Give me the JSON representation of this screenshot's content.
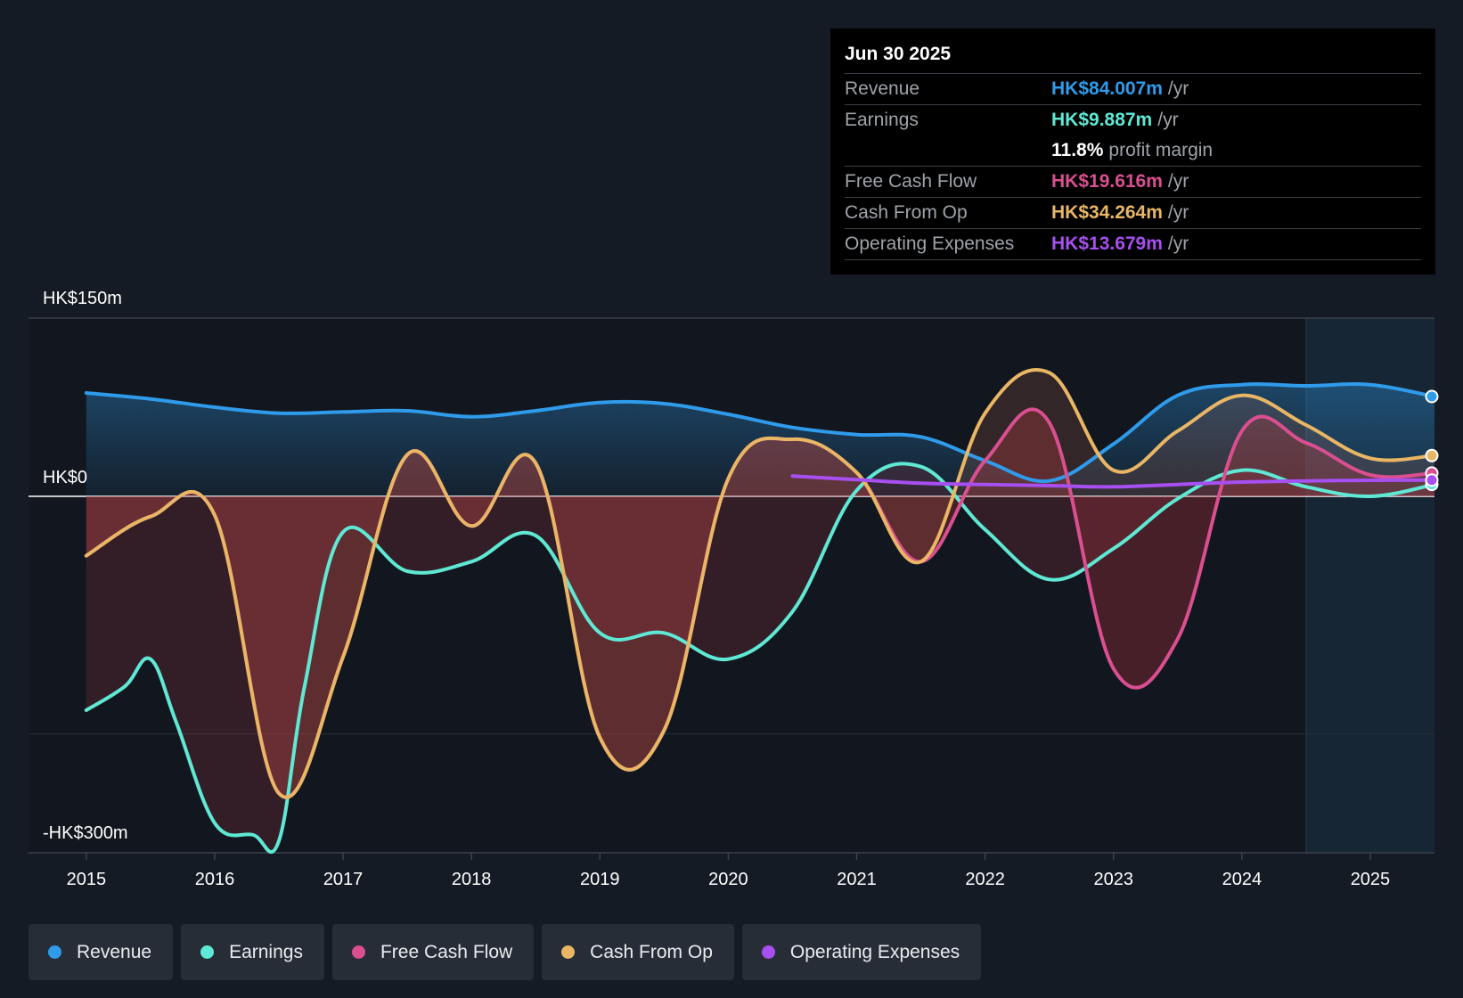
{
  "tooltip": {
    "date": "Jun 30 2025",
    "rows": [
      {
        "label": "Revenue",
        "value": "HK$84.007m",
        "unit": "/yr",
        "color": "#2f9bea"
      },
      {
        "label": "Earnings",
        "value": "HK$9.887m",
        "unit": "/yr",
        "color": "#5fe8d4"
      },
      {
        "label": "",
        "value": "11.8%",
        "unit": "profit margin",
        "color": "#ffffff"
      },
      {
        "label": "Free Cash Flow",
        "value": "HK$19.616m",
        "unit": "/yr",
        "color": "#d94f8f"
      },
      {
        "label": "Cash From Op",
        "value": "HK$34.264m",
        "unit": "/yr",
        "color": "#e9b665"
      },
      {
        "label": "Operating Expenses",
        "value": "HK$13.679m",
        "unit": "/yr",
        "color": "#a74ff0"
      }
    ]
  },
  "legend": [
    {
      "label": "Revenue",
      "color": "#2f9bea"
    },
    {
      "label": "Earnings",
      "color": "#5fe8d4"
    },
    {
      "label": "Free Cash Flow",
      "color": "#d94f8f"
    },
    {
      "label": "Cash From Op",
      "color": "#e9b665"
    },
    {
      "label": "Operating Expenses",
      "color": "#a74ff0"
    }
  ],
  "chart_data": {
    "type": "area",
    "ylim": [
      -300,
      150
    ],
    "ytick_labels": [
      {
        "value": 150,
        "label": "HK$150m"
      },
      {
        "value": 0,
        "label": "HK$0"
      },
      {
        "value": -300,
        "label": "-HK$300m"
      }
    ],
    "xlim": [
      2014.55,
      2025.5
    ],
    "xtick_labels": [
      "2015",
      "2016",
      "2017",
      "2018",
      "2019",
      "2020",
      "2021",
      "2022",
      "2023",
      "2024",
      "2025"
    ],
    "xtick_values": [
      2015,
      2016,
      2017,
      2018,
      2019,
      2020,
      2021,
      2022,
      2023,
      2024,
      2025
    ],
    "forecast_start": 2024.5,
    "series": [
      {
        "name": "Revenue",
        "color": "#2f9bea",
        "points": [
          [
            2015,
            87
          ],
          [
            2015.5,
            82
          ],
          [
            2016,
            75
          ],
          [
            2016.5,
            70
          ],
          [
            2017,
            71
          ],
          [
            2017.5,
            72
          ],
          [
            2018,
            67
          ],
          [
            2018.5,
            72
          ],
          [
            2019,
            79
          ],
          [
            2019.5,
            78
          ],
          [
            2020,
            69
          ],
          [
            2020.5,
            58
          ],
          [
            2021,
            52
          ],
          [
            2021.5,
            50
          ],
          [
            2022,
            30
          ],
          [
            2022.5,
            13
          ],
          [
            2023,
            44
          ],
          [
            2023.5,
            85
          ],
          [
            2024,
            94
          ],
          [
            2024.5,
            93
          ],
          [
            2025,
            94
          ],
          [
            2025.5,
            84
          ]
        ]
      },
      {
        "name": "Earnings",
        "color": "#5fe8d4",
        "points": [
          [
            2015,
            -180
          ],
          [
            2015.3,
            -160
          ],
          [
            2015.5,
            -137
          ],
          [
            2015.7,
            -190
          ],
          [
            2016,
            -275
          ],
          [
            2016.3,
            -285
          ],
          [
            2016.5,
            -290
          ],
          [
            2016.7,
            -160
          ],
          [
            2017,
            -30
          ],
          [
            2017.5,
            -63
          ],
          [
            2018,
            -55
          ],
          [
            2018.5,
            -33
          ],
          [
            2019,
            -115
          ],
          [
            2019.5,
            -115
          ],
          [
            2020,
            -137
          ],
          [
            2020.5,
            -97
          ],
          [
            2021,
            5
          ],
          [
            2021.5,
            25
          ],
          [
            2022,
            -28
          ],
          [
            2022.5,
            -70
          ],
          [
            2023,
            -44
          ],
          [
            2023.5,
            -2
          ],
          [
            2024,
            22
          ],
          [
            2024.5,
            8
          ],
          [
            2025,
            0
          ],
          [
            2025.5,
            10
          ]
        ]
      },
      {
        "name": "Free Cash Flow",
        "color": "#d94f8f",
        "points": [
          [
            2015,
            -50
          ],
          [
            2015.5,
            -17
          ],
          [
            2016,
            -16
          ],
          [
            2016.5,
            -250
          ],
          [
            2017,
            -135
          ],
          [
            2017.5,
            35
          ],
          [
            2018,
            -25
          ],
          [
            2018.5,
            28
          ],
          [
            2019,
            -203
          ],
          [
            2019.5,
            -197
          ],
          [
            2020,
            15
          ],
          [
            2020.5,
            48
          ],
          [
            2021,
            20
          ],
          [
            2021.5,
            -55
          ],
          [
            2022,
            30
          ],
          [
            2022.5,
            62
          ],
          [
            2023,
            -145
          ],
          [
            2023.5,
            -120
          ],
          [
            2024,
            55
          ],
          [
            2024.5,
            45
          ],
          [
            2025,
            18
          ],
          [
            2025.5,
            19.6
          ]
        ]
      },
      {
        "name": "Cash From Op",
        "color": "#e9b665",
        "points": [
          [
            2015,
            -50
          ],
          [
            2015.5,
            -17
          ],
          [
            2016,
            -16
          ],
          [
            2016.5,
            -250
          ],
          [
            2017,
            -135
          ],
          [
            2017.5,
            35
          ],
          [
            2018,
            -25
          ],
          [
            2018.5,
            28
          ],
          [
            2019,
            -203
          ],
          [
            2019.5,
            -197
          ],
          [
            2020,
            15
          ],
          [
            2020.5,
            48
          ],
          [
            2021,
            20
          ],
          [
            2021.5,
            -55
          ],
          [
            2022,
            70
          ],
          [
            2022.5,
            104
          ],
          [
            2023,
            22
          ],
          [
            2023.5,
            55
          ],
          [
            2024,
            85
          ],
          [
            2024.5,
            60
          ],
          [
            2025,
            32
          ],
          [
            2025.5,
            34.3
          ]
        ]
      },
      {
        "name": "Operating Expenses",
        "color": "#a74ff0",
        "points": [
          [
            2020.5,
            17
          ],
          [
            2021,
            14
          ],
          [
            2021.5,
            11
          ],
          [
            2022,
            10
          ],
          [
            2022.5,
            9
          ],
          [
            2023,
            8
          ],
          [
            2023.5,
            10
          ],
          [
            2024,
            12
          ],
          [
            2024.5,
            13
          ],
          [
            2025,
            13.5
          ],
          [
            2025.5,
            13.7
          ]
        ]
      }
    ]
  }
}
